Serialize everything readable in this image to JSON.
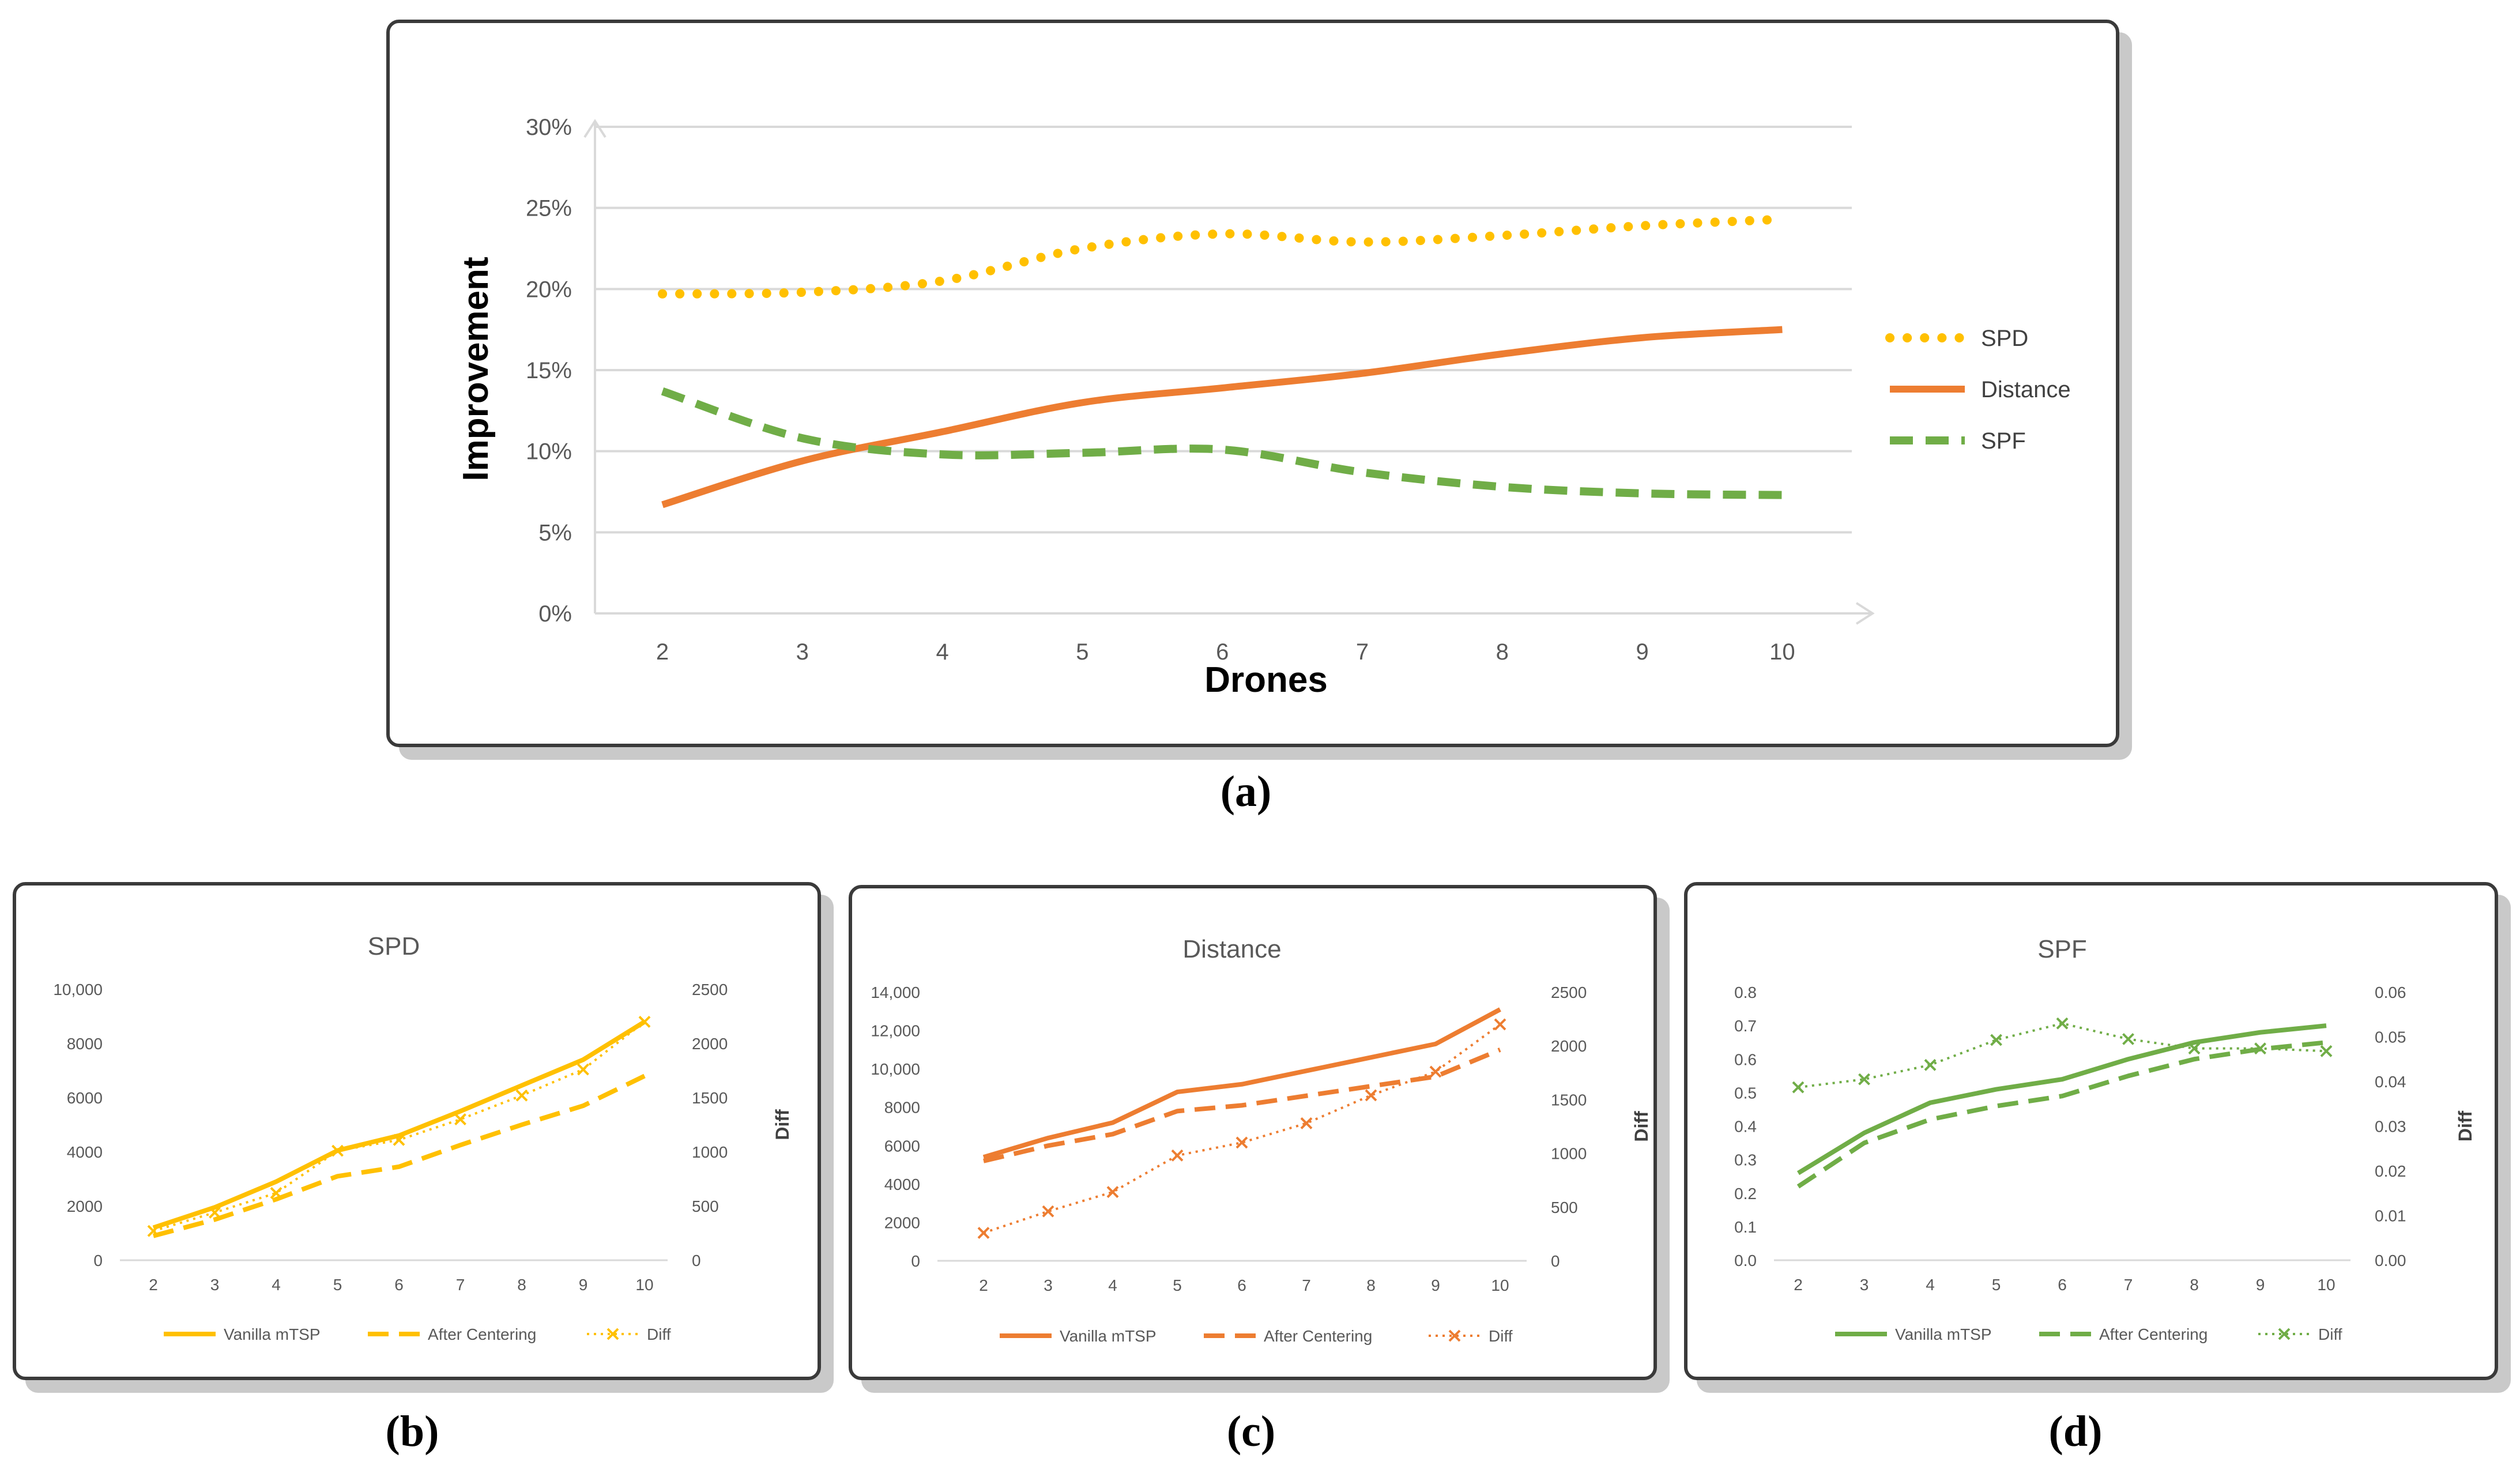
{
  "chart_data": [
    {
      "type": "line",
      "panel": "a",
      "title": "",
      "xlabel": "Drones",
      "ylabel": "Improvement",
      "categories": [
        "2",
        "3",
        "4",
        "5",
        "6",
        "7",
        "8",
        "9",
        "10"
      ],
      "yticks": [
        "0%",
        "5%",
        "10%",
        "15%",
        "20%",
        "25%",
        "30%"
      ],
      "ylim": [
        0,
        0.3
      ],
      "legend_position": "right",
      "series": [
        {
          "name": "SPD",
          "style": "dotted",
          "color": "#FFC000",
          "values": [
            0.197,
            0.198,
            0.205,
            0.225,
            0.234,
            0.229,
            0.233,
            0.239,
            0.243
          ]
        },
        {
          "name": "Distance",
          "style": "solid",
          "color": "#ED7D31",
          "values": [
            0.067,
            0.094,
            0.112,
            0.13,
            0.139,
            0.148,
            0.16,
            0.17,
            0.175
          ]
        },
        {
          "name": "SPF",
          "style": "dashed",
          "color": "#70AD47",
          "values": [
            0.137,
            0.108,
            0.098,
            0.099,
            0.101,
            0.087,
            0.078,
            0.074,
            0.073
          ]
        }
      ]
    },
    {
      "type": "line",
      "panel": "b",
      "title": "SPD",
      "categories": [
        "2",
        "3",
        "4",
        "5",
        "6",
        "7",
        "8",
        "9",
        "10"
      ],
      "yticks": [
        "0",
        "2000",
        "4000",
        "6000",
        "8000",
        "10,000"
      ],
      "ylim": [
        0,
        10000
      ],
      "y2label": "Diff",
      "y2ticks": [
        "0",
        "500",
        "1000",
        "1500",
        "2000",
        "2500"
      ],
      "y2lim": [
        0,
        2500
      ],
      "color": "#FFC000",
      "series": [
        {
          "name": "Vanilla mTSP",
          "style": "solid",
          "axis": "left",
          "values": [
            1200,
            1950,
            2900,
            4050,
            4600,
            5500,
            6450,
            7400,
            8800
          ]
        },
        {
          "name": "After Centering",
          "style": "dashed",
          "axis": "left",
          "values": [
            900,
            1500,
            2250,
            3100,
            3450,
            4250,
            5000,
            5700,
            6800
          ]
        },
        {
          "name": "Diff",
          "style": "dotted-x",
          "axis": "right",
          "values": [
            270,
            440,
            620,
            1010,
            1110,
            1300,
            1520,
            1760,
            2200
          ]
        }
      ]
    },
    {
      "type": "line",
      "panel": "c",
      "title": "Distance",
      "categories": [
        "2",
        "3",
        "4",
        "5",
        "6",
        "7",
        "8",
        "9",
        "10"
      ],
      "yticks": [
        "0",
        "2000",
        "4000",
        "6000",
        "8000",
        "10,000",
        "12,000",
        "14,000"
      ],
      "ylim": [
        0,
        14000
      ],
      "y2label": "Diff",
      "y2ticks": [
        "0",
        "500",
        "1000",
        "1500",
        "2000",
        "2500"
      ],
      "y2lim": [
        0,
        2500
      ],
      "color": "#ED7D31",
      "series": [
        {
          "name": "Vanilla mTSP",
          "style": "solid",
          "axis": "left",
          "values": [
            5400,
            6400,
            7200,
            8800,
            9200,
            9900,
            10600,
            11300,
            13100
          ]
        },
        {
          "name": "After Centering",
          "style": "dashed",
          "axis": "left",
          "values": [
            5200,
            6000,
            6600,
            7800,
            8100,
            8600,
            9100,
            9600,
            11000
          ]
        },
        {
          "name": "Diff",
          "style": "dotted-x",
          "axis": "right",
          "values": [
            260,
            460,
            640,
            980,
            1100,
            1280,
            1540,
            1760,
            2200
          ]
        }
      ]
    },
    {
      "type": "line",
      "panel": "d",
      "title": "SPF",
      "categories": [
        "2",
        "3",
        "4",
        "5",
        "6",
        "7",
        "8",
        "9",
        "10"
      ],
      "yticks": [
        "0.0",
        "0.1",
        "0.2",
        "0.3",
        "0.4",
        "0.5",
        "0.6",
        "0.7",
        "0.8"
      ],
      "ylim": [
        0,
        0.8
      ],
      "y2label": "Diff",
      "y2ticks": [
        "0.00",
        "0.01",
        "0.02",
        "0.03",
        "0.04",
        "0.05",
        "0.06"
      ],
      "y2lim": [
        0,
        0.06
      ],
      "color": "#70AD47",
      "series": [
        {
          "name": "Vanilla mTSP",
          "style": "solid",
          "axis": "left",
          "values": [
            0.26,
            0.38,
            0.47,
            0.51,
            0.54,
            0.6,
            0.65,
            0.68,
            0.7
          ]
        },
        {
          "name": "After Centering",
          "style": "dashed",
          "axis": "left",
          "values": [
            0.22,
            0.35,
            0.42,
            0.46,
            0.49,
            0.55,
            0.6,
            0.63,
            0.65
          ]
        },
        {
          "name": "Diff",
          "style": "dotted-x",
          "axis": "right",
          "values": [
            0.0387,
            0.0405,
            0.0437,
            0.0493,
            0.053,
            0.0495,
            0.0474,
            0.0474,
            0.0468
          ]
        }
      ]
    }
  ],
  "captions": {
    "a": "(a)",
    "b": "(b)",
    "c": "(c)",
    "d": "(d)"
  }
}
